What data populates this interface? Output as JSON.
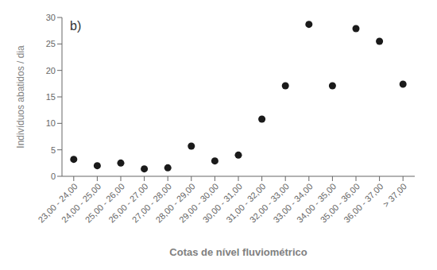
{
  "chart_data": {
    "type": "scatter",
    "categories": [
      "23,00 - 24,00",
      "24,00 - 25,00",
      "25,00 - 26,00",
      "26,00 - 27,00",
      "27,00 - 28,00",
      "28,00 - 29,00",
      "29,00 - 30,00",
      "30,00 - 31,00",
      "31,00 - 32,00",
      "32,00 - 33,00",
      "33,00 - 34,00",
      "34,00 - 35,00",
      "35,00 - 36,00",
      "36,00 - 37,00",
      "> 37,00"
    ],
    "values": [
      3.2,
      2.0,
      2.5,
      1.4,
      1.6,
      5.7,
      2.9,
      4.0,
      10.8,
      17.1,
      28.7,
      17.1,
      27.9,
      25.5,
      17.4
    ],
    "xlabel": "Cotas de nível fluviométrico",
    "ylabel": "Indivíduos abatidos / dia",
    "annotations": [
      "b)"
    ],
    "color": "#1a1a1a",
    "ylim": [
      0,
      30
    ],
    "yticks": [
      0,
      5,
      10,
      15,
      20,
      25,
      30
    ],
    "grid": false
  }
}
